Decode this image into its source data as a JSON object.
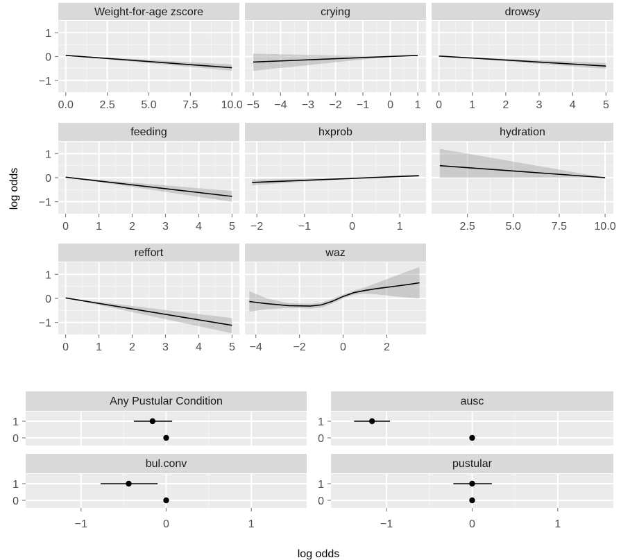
{
  "chart_data": [
    {
      "type": "line",
      "title": "",
      "ylabel": "log odds",
      "ylim": [
        -1.5,
        1.5
      ],
      "yticks": [
        -1,
        0,
        1
      ],
      "panels": [
        {
          "strip": "Weight-for-age zscore",
          "xlim": [
            -0.45,
            10.45
          ],
          "xticks": [
            0,
            2.5,
            5,
            7.5,
            10
          ],
          "xtick_labels": [
            "0.0",
            "2.5",
            "5.0",
            "7.5",
            "10.0"
          ],
          "line": {
            "x": [
              0,
              10
            ],
            "y": [
              0.05,
              -0.47
            ]
          },
          "band": {
            "x": [
              0,
              10
            ],
            "lower": [
              0.05,
              -0.6
            ],
            "upper": [
              0.05,
              -0.33
            ]
          }
        },
        {
          "strip": "crying",
          "xlim": [
            -5.3,
            1.3
          ],
          "xticks": [
            -5,
            -4,
            -3,
            -2,
            -1,
            0,
            1
          ],
          "xtick_labels": [
            "−5",
            "−4",
            "−3",
            "−2",
            "−1",
            "0",
            "1"
          ],
          "line": {
            "x": [
              -5,
              1
            ],
            "y": [
              -0.23,
              0.05
            ]
          },
          "band": {
            "x": [
              -5,
              0,
              1
            ],
            "lower": [
              -0.6,
              0,
              0.03
            ],
            "upper": [
              0.12,
              0,
              0.07
            ]
          }
        },
        {
          "strip": "drowsy",
          "xlim": [
            -0.22,
            5.22
          ],
          "xticks": [
            0,
            1,
            2,
            3,
            4,
            5
          ],
          "xtick_labels": [
            "0",
            "1",
            "2",
            "3",
            "4",
            "5"
          ],
          "line": {
            "x": [
              0,
              5
            ],
            "y": [
              0.02,
              -0.4
            ]
          },
          "band": {
            "x": [
              0,
              5
            ],
            "lower": [
              0.02,
              -0.52
            ],
            "upper": [
              0.02,
              -0.27
            ]
          }
        },
        {
          "strip": "feeding",
          "xlim": [
            -0.22,
            5.22
          ],
          "xticks": [
            0,
            1,
            2,
            3,
            4,
            5
          ],
          "xtick_labels": [
            "0",
            "1",
            "2",
            "3",
            "4",
            "5"
          ],
          "line": {
            "x": [
              0,
              5
            ],
            "y": [
              0.02,
              -0.78
            ]
          },
          "band": {
            "x": [
              0,
              5
            ],
            "lower": [
              0.02,
              -1.0
            ],
            "upper": [
              0.02,
              -0.55
            ]
          }
        },
        {
          "strip": "hxprob",
          "xlim": [
            -2.25,
            1.55
          ],
          "xticks": [
            -2,
            -1,
            0,
            1
          ],
          "xtick_labels": [
            "−2",
            "−1",
            "0",
            "1"
          ],
          "line": {
            "x": [
              -2.1,
              1.4
            ],
            "y": [
              -0.2,
              0.08
            ]
          },
          "band": {
            "x": [
              -2.1,
              0,
              1.4
            ],
            "lower": [
              -0.32,
              -0.03,
              0.04
            ],
            "upper": [
              -0.08,
              0.0,
              0.12
            ]
          }
        },
        {
          "strip": "hydration",
          "xlim": [
            0.55,
            10.45
          ],
          "xticks": [
            2.5,
            5,
            7.5,
            10
          ],
          "xtick_labels": [
            "2.5",
            "5.0",
            "7.5",
            "10.0"
          ],
          "line": {
            "x": [
              1,
              10
            ],
            "y": [
              0.5,
              0.0
            ]
          },
          "band": {
            "x": [
              1,
              10
            ],
            "lower": [
              0.0,
              0.0
            ],
            "upper": [
              1.2,
              0.0
            ]
          }
        },
        {
          "strip": "reffort",
          "xlim": [
            -0.22,
            5.22
          ],
          "xticks": [
            0,
            1,
            2,
            3,
            4,
            5
          ],
          "xtick_labels": [
            "0",
            "1",
            "2",
            "3",
            "4",
            "5"
          ],
          "line": {
            "x": [
              0,
              5
            ],
            "y": [
              0.02,
              -1.12
            ]
          },
          "band": {
            "x": [
              0,
              5
            ],
            "lower": [
              0.02,
              -1.45
            ],
            "upper": [
              0.02,
              -0.82
            ]
          }
        },
        {
          "strip": "waz",
          "xlim": [
            -4.5,
            3.8
          ],
          "xticks": [
            -4,
            -2,
            0,
            2
          ],
          "xtick_labels": [
            "−4",
            "−2",
            "0",
            "2"
          ],
          "line": {
            "x": [
              -4.3,
              -3.5,
              -2.5,
              -1.5,
              -1.0,
              -0.5,
              0,
              0.5,
              1.0,
              1.5,
              2.0,
              2.5,
              3.0,
              3.5
            ],
            "y": [
              -0.13,
              -0.22,
              -0.3,
              -0.32,
              -0.27,
              -0.12,
              0.08,
              0.24,
              0.33,
              0.4,
              0.46,
              0.52,
              0.58,
              0.65
            ]
          },
          "band": {
            "x": [
              -4.3,
              -3.5,
              -2.5,
              -1.5,
              -1.0,
              -0.5,
              0,
              0.5,
              1.0,
              1.5,
              2.0,
              2.5,
              3.0,
              3.5
            ],
            "lower": [
              -0.55,
              -0.45,
              -0.4,
              -0.42,
              -0.38,
              -0.22,
              0.0,
              0.15,
              0.2,
              0.17,
              0.12,
              0.07,
              0.03,
              0.0
            ],
            "upper": [
              0.3,
              0.0,
              -0.2,
              -0.22,
              -0.17,
              -0.02,
              0.16,
              0.33,
              0.46,
              0.63,
              0.8,
              0.97,
              1.14,
              1.3
            ]
          }
        }
      ]
    },
    {
      "type": "scatter",
      "title": "",
      "xlabel": "log odds",
      "xlim": [
        -1.65,
        1.65
      ],
      "xticks": [
        -1,
        0,
        1
      ],
      "xtick_labels": [
        "−1",
        "0",
        "1"
      ],
      "categories": [
        "1",
        "0"
      ],
      "panels": [
        {
          "strip": "Any Pustular Condition",
          "points": [
            {
              "level": "1",
              "value": -0.16,
              "lower": -0.38,
              "upper": 0.07
            },
            {
              "level": "0",
              "value": 0,
              "lower": 0,
              "upper": 0
            }
          ]
        },
        {
          "strip": "ausc",
          "points": [
            {
              "level": "1",
              "value": -1.17,
              "lower": -1.38,
              "upper": -0.96
            },
            {
              "level": "0",
              "value": 0,
              "lower": 0,
              "upper": 0
            }
          ]
        },
        {
          "strip": "bul.conv",
          "points": [
            {
              "level": "1",
              "value": -0.44,
              "lower": -0.77,
              "upper": -0.1
            },
            {
              "level": "0",
              "value": 0,
              "lower": 0,
              "upper": 0
            }
          ]
        },
        {
          "strip": "pustular",
          "points": [
            {
              "level": "1",
              "value": 0.0,
              "lower": -0.22,
              "upper": 0.23
            },
            {
              "level": "0",
              "value": 0,
              "lower": 0,
              "upper": 0
            }
          ]
        }
      ]
    }
  ]
}
